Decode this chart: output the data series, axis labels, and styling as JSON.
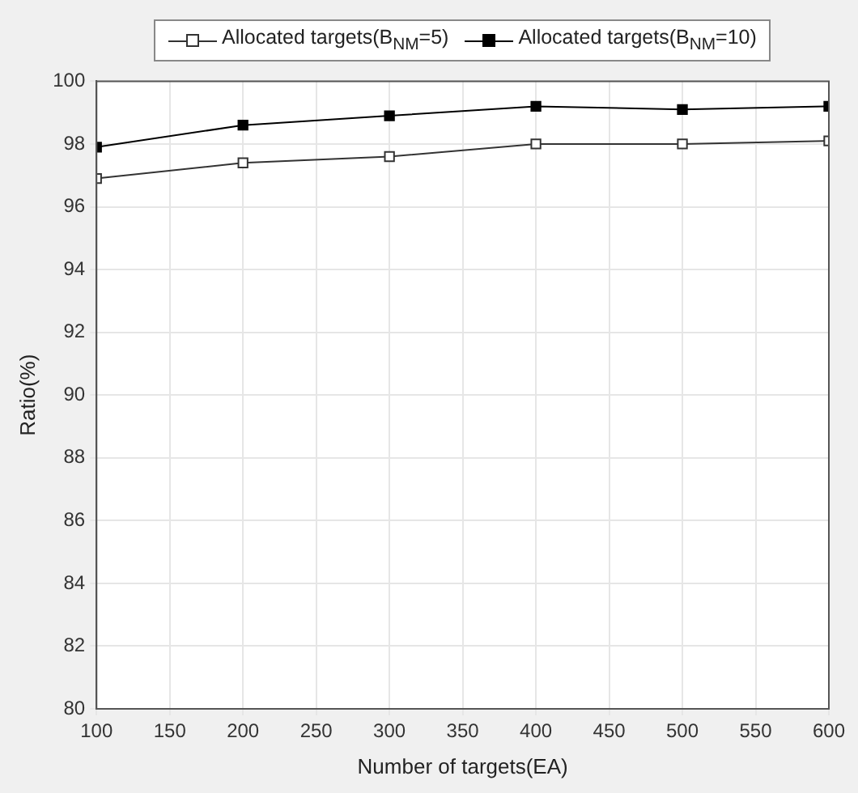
{
  "chart_data": {
    "type": "line",
    "xlabel": "Number of targets(EA)",
    "ylabel": "Ratio(%)",
    "x": [
      100,
      200,
      300,
      400,
      500,
      600
    ],
    "series": [
      {
        "name": "Allocated targets(B$_{NM}$=5)",
        "color": "#333333",
        "values": [
          96.9,
          97.4,
          97.6,
          98.0,
          98.0,
          98.1
        ],
        "marker": "square"
      },
      {
        "name": "Allocated targets(B$_{NM}$=10)",
        "color": "#000000",
        "values": [
          97.9,
          98.6,
          98.9,
          99.2,
          99.1,
          99.2
        ],
        "marker": "square"
      }
    ],
    "xlim": [
      100,
      600
    ],
    "xticks": [
      100,
      150,
      200,
      250,
      300,
      350,
      400,
      450,
      500,
      550,
      600
    ],
    "ylim": [
      80,
      100
    ],
    "yticks": [
      80,
      82,
      84,
      86,
      88,
      90,
      92,
      94,
      96,
      98,
      100
    ],
    "grid": true,
    "legend": "top",
    "line_style": "solid"
  }
}
